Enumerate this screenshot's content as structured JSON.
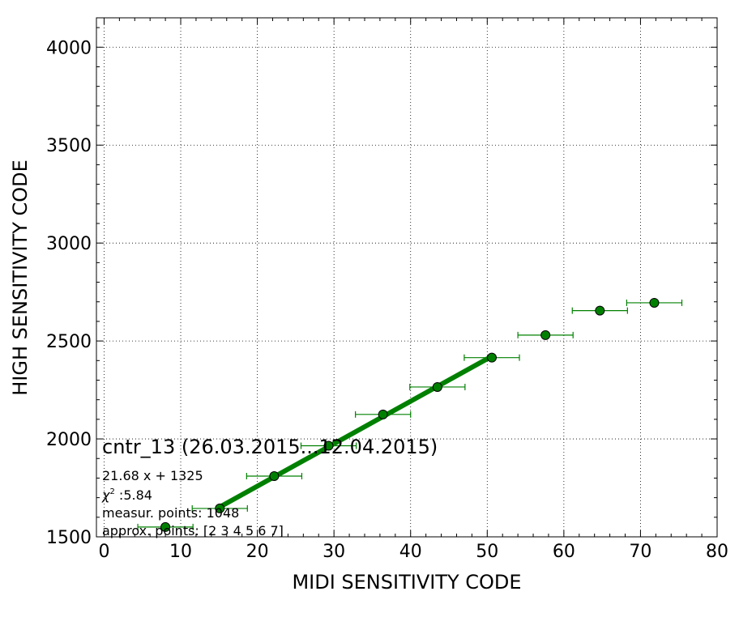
{
  "chart_data": {
    "type": "scatter",
    "xlabel": "MIDI SENSITIVITY CODE",
    "ylabel": "HIGH SENSITIVITY CODE",
    "xlim": [
      -1,
      80
    ],
    "ylim": [
      1500,
      4150
    ],
    "xticks": [
      0,
      10,
      20,
      30,
      40,
      50,
      60,
      70,
      80
    ],
    "yticks": [
      1500,
      2000,
      2500,
      3000,
      3500,
      4000
    ],
    "grid": true,
    "colors": {
      "points": "#008000",
      "fit": "#008000"
    },
    "points": [
      {
        "x": 8.0,
        "y": 1550,
        "xerr": 3.6
      },
      {
        "x": 15.1,
        "y": 1645,
        "xerr": 3.6
      },
      {
        "x": 22.2,
        "y": 1810,
        "xerr": 3.6
      },
      {
        "x": 29.3,
        "y": 1965,
        "xerr": 3.6
      },
      {
        "x": 36.4,
        "y": 2125,
        "xerr": 3.6
      },
      {
        "x": 43.5,
        "y": 2265,
        "xerr": 3.6
      },
      {
        "x": 50.6,
        "y": 2415,
        "xerr": 3.6
      },
      {
        "x": 57.6,
        "y": 2530,
        "xerr": 3.6
      },
      {
        "x": 64.7,
        "y": 2655,
        "xerr": 3.6
      },
      {
        "x": 71.8,
        "y": 2695,
        "xerr": 3.6
      }
    ],
    "fit_line": {
      "slope": 21.68,
      "intercept": 1325,
      "x_start": 15.1,
      "x_end": 50.6
    },
    "annotations": {
      "title": "cntr_13 (26.03.2015...12.04.2015)",
      "equation": "21.68 x + 1325",
      "chi_symbol": "χ",
      "chi_sup": "2",
      "chi_value": " :5.84",
      "measur_points": "measur. points: 1048",
      "approx_points": "approx. points: [2 3 4 5 6 7]"
    }
  }
}
